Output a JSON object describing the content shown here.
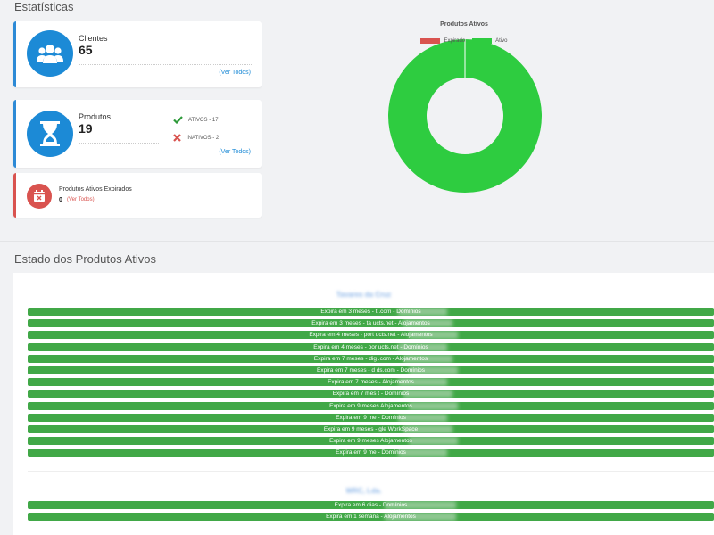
{
  "estatisticas": {
    "title": "Estatísticas",
    "clientes": {
      "label": "Clientes",
      "value": "65",
      "link": "(Ver Todos)"
    },
    "produtos": {
      "label": "Produtos",
      "value": "19",
      "link": "(Ver Todos)",
      "ativos": "ATIVOS - 17",
      "inativos": "INATIVOS - 2"
    },
    "expirados": {
      "label": "Produtos Ativos Expirados",
      "value": "0",
      "link": "(Ver Todos)"
    }
  },
  "chart_data": {
    "type": "pie",
    "title": "Produtos Ativos",
    "legend_position": "top",
    "series": [
      {
        "name": "Expirado",
        "value": 0,
        "color": "#d9534f"
      },
      {
        "name": "Ativo",
        "value": 17,
        "color": "#2ecc40"
      }
    ]
  },
  "estado": {
    "title": "Estado dos Produtos Ativos",
    "groups": [
      {
        "name": "Tavares da Cruz",
        "rows": [
          "Expira em 3 meses - t            .com - Domínios",
          "Expira em 3 meses - ta                ucts.net - Alojamentos",
          "Expira em 4 meses - port              ucts.net - Alojamentos",
          "Expira em 4 meses - por               ucts.net - Domínios",
          "Expira em 7 meses - dig               .com - Alojamentos",
          "Expira em 7 meses - d              ds.com - Domínios",
          "Expira em 7 meses              - Alojamentos",
          "Expira em 7 mes               t - Domínios",
          "Expira em 9 meses              Alojamentos",
          "Expira em 9 me              - Domínios",
          "Expira em 9 meses -            gle WorkSpace",
          "Expira em 9 meses               Alojamentos",
          "Expira em 9 me              - Domínios"
        ]
      },
      {
        "name": "WRC, Lda.",
        "rows": [
          "Expira em 6 dias -                 Domínios",
          "Expira em 1 semana -                 Alojamentos"
        ]
      }
    ]
  }
}
